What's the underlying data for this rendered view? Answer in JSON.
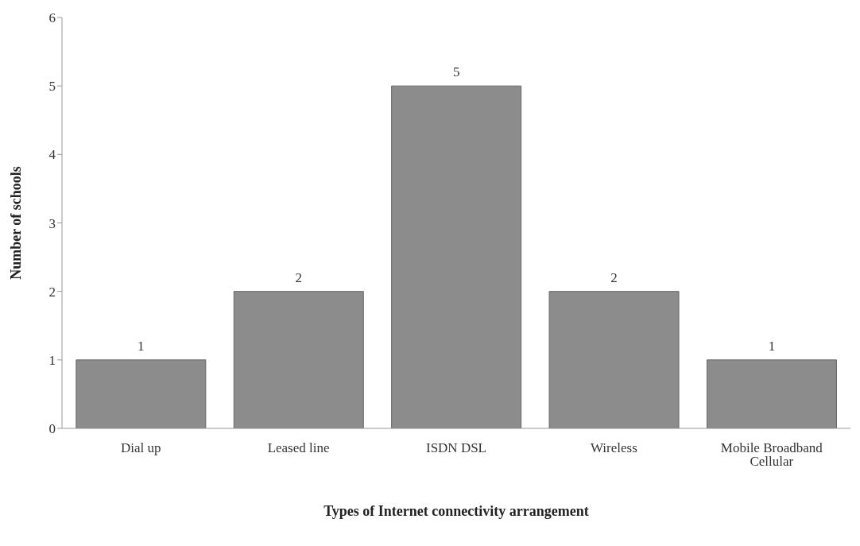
{
  "chart_data": {
    "type": "bar",
    "xlabel": "Types of Internet connectivity arrangement",
    "ylabel": "Number of schools",
    "categories": [
      "Dial up",
      "Leased line",
      "ISDN DSL",
      "Wireless",
      "Mobile Broadband Cellular"
    ],
    "values": [
      1,
      2,
      5,
      2,
      1
    ],
    "color": "#8c8c8c",
    "ylim": [
      0,
      6
    ],
    "yticks": [
      0,
      1,
      2,
      3,
      4,
      5,
      6
    ],
    "grid": false,
    "legend": false,
    "data_labels": true
  }
}
